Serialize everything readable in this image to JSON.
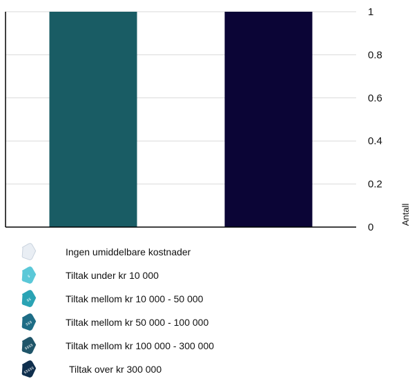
{
  "chart_data": {
    "type": "bar",
    "categories": [
      "",
      ""
    ],
    "series": [
      {
        "values": [
          1,
          1
        ]
      }
    ],
    "bar_colors": [
      "#195c64",
      "#0b0536"
    ],
    "ylabel": "Antall",
    "ylim": [
      0,
      1
    ],
    "yticks": [
      0,
      0.2,
      0.4,
      0.6,
      0.8,
      1
    ],
    "ytick_labels": [
      "0",
      "0.2",
      "0.4",
      "0.6",
      "0.8",
      "1"
    ],
    "y_axis_side": "right",
    "grid": true
  },
  "legend": {
    "items": [
      {
        "label": "Ingen umiddelbare kostnader",
        "icon": "tag-empty-icon",
        "color": "#e9eef4",
        "mark": ""
      },
      {
        "label": "Tiltak under kr 10 000",
        "icon": "tag-1-icon",
        "color": "#5bc8d8",
        "mark": "$"
      },
      {
        "label": "Tiltak mellom kr 10 000 - 50 000",
        "icon": "tag-2-icon",
        "color": "#2aa3b4",
        "mark": "$$"
      },
      {
        "label": "Tiltak mellom kr 50 000 - 100 000",
        "icon": "tag-3-icon",
        "color": "#1e6d86",
        "mark": "$$$"
      },
      {
        "label": "Tiltak mellom kr 100 000 - 300 000",
        "icon": "tag-4-icon",
        "color": "#1f5569",
        "mark": "$$$$"
      },
      {
        "label": "Tiltak over kr  300 000",
        "icon": "tag-5-icon",
        "color": "#0f2f4d",
        "mark": "$$$$$"
      }
    ]
  }
}
